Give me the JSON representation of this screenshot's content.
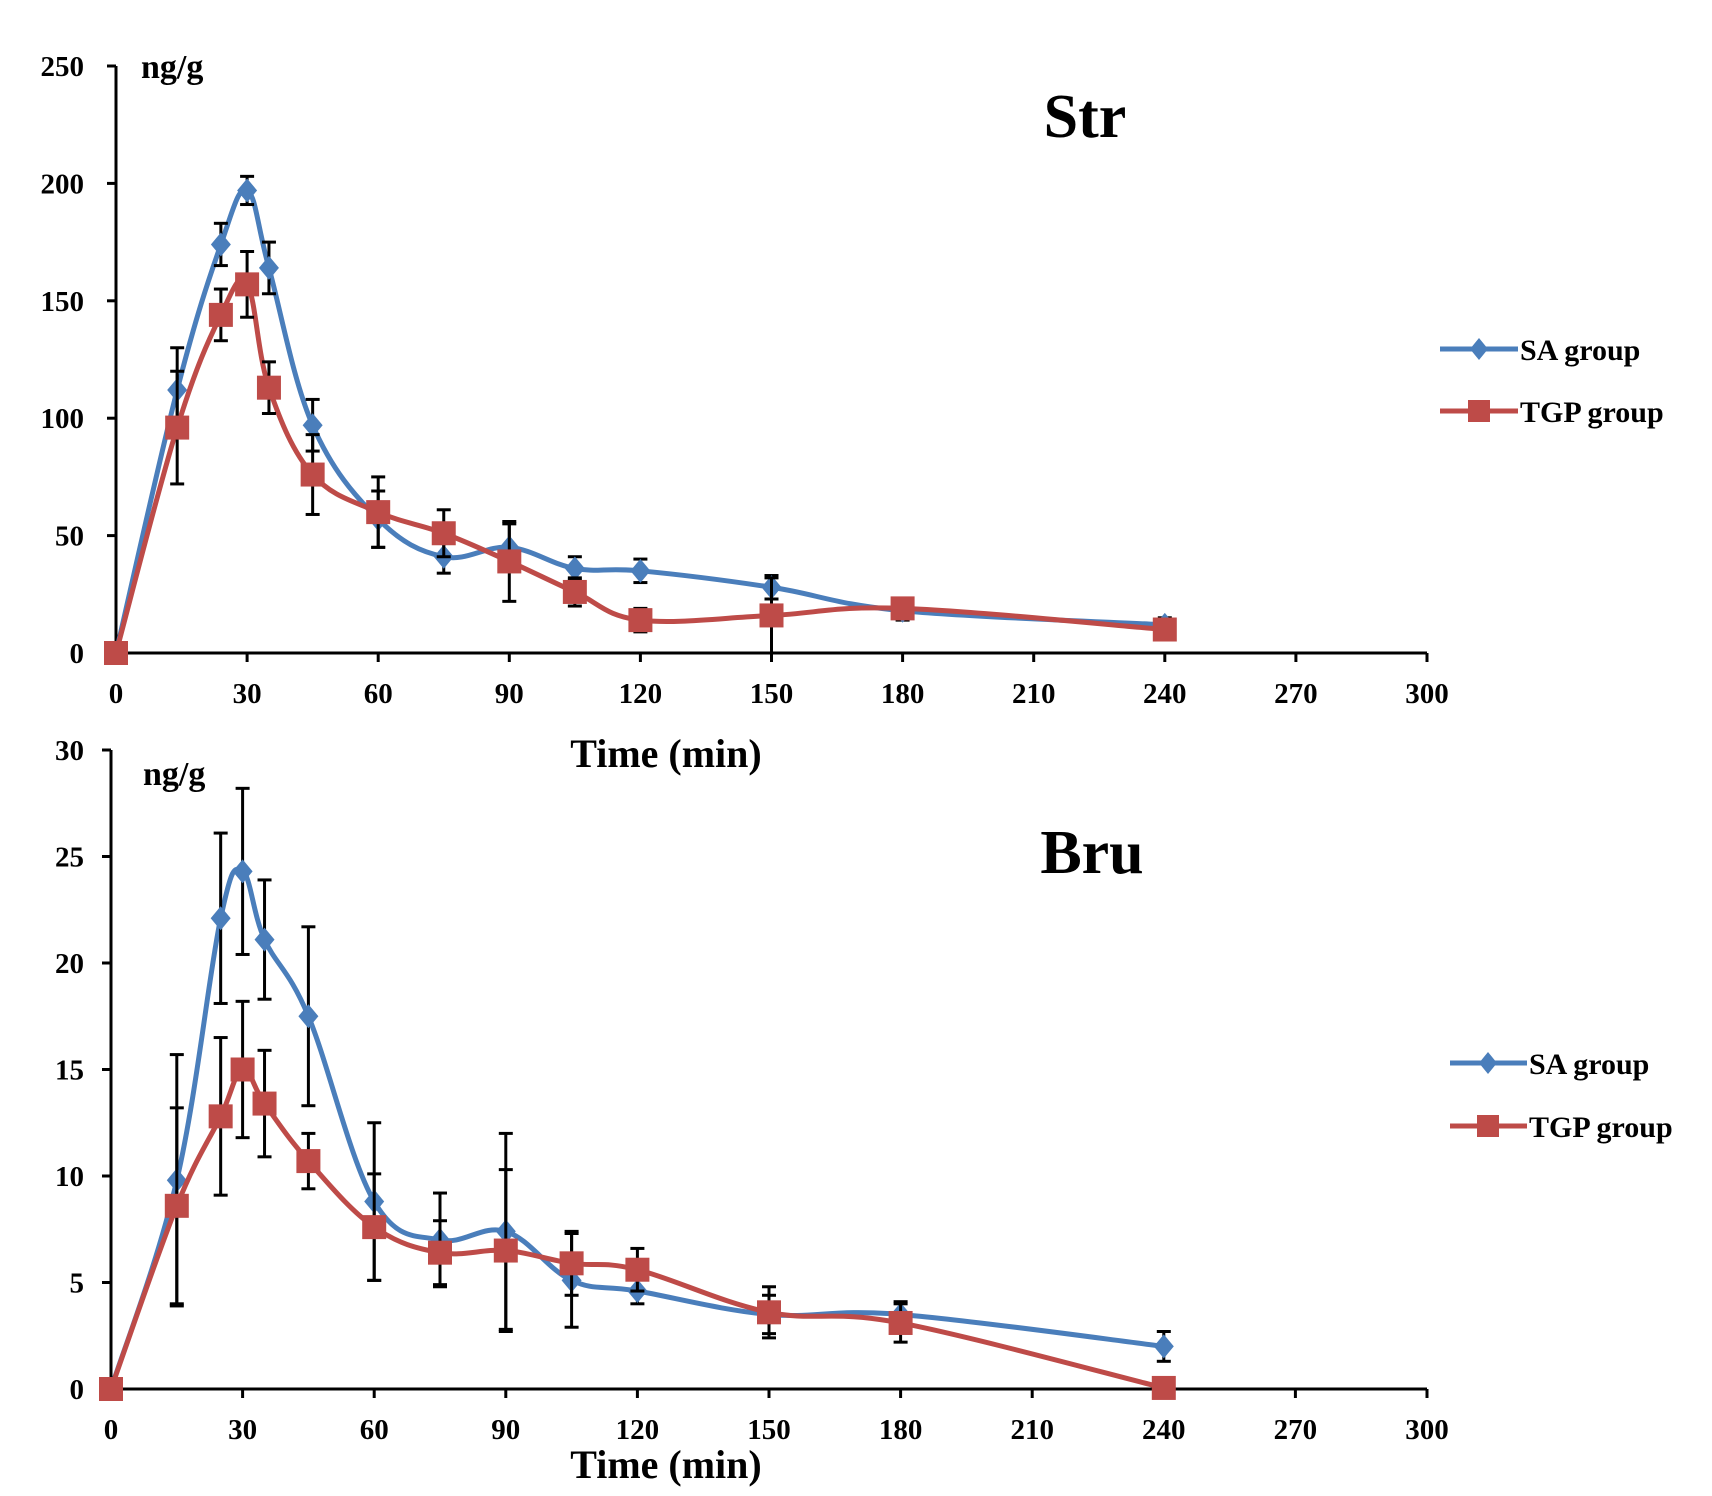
{
  "chart_data": [
    {
      "type": "line",
      "title": "Str",
      "unit_label": "ng/g",
      "xlabel": "Time (min)",
      "ylabel": "ng/g",
      "xlim": [
        0,
        300
      ],
      "ylim": [
        0,
        250
      ],
      "x_ticks": [
        0,
        30,
        60,
        90,
        120,
        150,
        180,
        210,
        240,
        270,
        300
      ],
      "y_ticks": [
        0,
        50,
        100,
        150,
        200,
        250
      ],
      "grid": false,
      "legend_position": "right",
      "series": [
        {
          "name": "SA group",
          "color": "#4a7ebb",
          "marker": "diamond",
          "x": [
            0,
            14,
            24,
            30,
            35,
            45,
            60,
            75,
            90,
            105,
            120,
            150,
            180,
            240
          ],
          "values": [
            0,
            112,
            174,
            197,
            164,
            97,
            57,
            41,
            45,
            36,
            35,
            28,
            18,
            12
          ],
          "errors": [
            0,
            18,
            9,
            6,
            11,
            11,
            12,
            7,
            10,
            5,
            5,
            5,
            4,
            3
          ]
        },
        {
          "name": "TGP group",
          "color": "#be4b48",
          "marker": "square",
          "x": [
            0,
            14,
            24,
            30,
            35,
            45,
            60,
            75,
            90,
            105,
            120,
            150,
            180,
            240
          ],
          "values": [
            0,
            96,
            144,
            157,
            113,
            76,
            60,
            51,
            39,
            26,
            14,
            16,
            19,
            10
          ],
          "errors": [
            0,
            24,
            11,
            14,
            11,
            17,
            15,
            10,
            17,
            6,
            5,
            16,
            3,
            3
          ]
        }
      ]
    },
    {
      "type": "line",
      "title": "Bru",
      "unit_label": "ng/g",
      "xlabel": "Time (min)",
      "ylabel": "ng/g",
      "xlim": [
        0,
        300
      ],
      "ylim": [
        0,
        30
      ],
      "x_ticks": [
        0,
        30,
        60,
        90,
        120,
        150,
        180,
        210,
        240,
        270,
        300
      ],
      "y_ticks": [
        0,
        5,
        10,
        15,
        20,
        25,
        30
      ],
      "grid": false,
      "legend_position": "right",
      "series": [
        {
          "name": "SA group",
          "color": "#4a7ebb",
          "marker": "diamond",
          "x": [
            0,
            15,
            25,
            30,
            35,
            45,
            60,
            75,
            90,
            105,
            120,
            150,
            180,
            240
          ],
          "values": [
            0,
            9.8,
            22.1,
            24.3,
            21.1,
            17.5,
            8.8,
            7.0,
            7.4,
            5.1,
            4.6,
            3.5,
            3.5,
            2.0
          ],
          "errors": [
            0,
            5.9,
            4.0,
            3.9,
            2.8,
            4.2,
            3.7,
            2.2,
            4.6,
            2.2,
            0.6,
            0.9,
            0.6,
            0.7
          ]
        },
        {
          "name": "TGP group",
          "color": "#be4b48",
          "marker": "square",
          "x": [
            0,
            15,
            25,
            30,
            35,
            45,
            60,
            75,
            90,
            105,
            120,
            150,
            180,
            240
          ],
          "values": [
            0,
            8.6,
            12.8,
            15.0,
            13.4,
            10.7,
            7.6,
            6.4,
            6.5,
            5.9,
            5.6,
            3.6,
            3.1,
            0.05
          ],
          "errors": [
            0,
            4.6,
            3.7,
            3.2,
            2.5,
            1.3,
            2.5,
            1.5,
            3.8,
            1.5,
            1.0,
            1.2,
            0.9,
            0.2
          ]
        }
      ]
    }
  ]
}
